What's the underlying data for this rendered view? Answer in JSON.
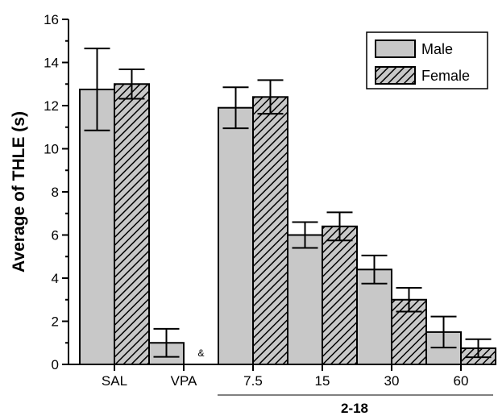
{
  "chart_data": {
    "type": "bar",
    "title": "",
    "xlabel": "",
    "ylabel": "Average of THLE (s)",
    "ylim": [
      0,
      16
    ],
    "yticks": [
      0,
      2,
      4,
      6,
      8,
      10,
      12,
      14,
      16
    ],
    "categories": [
      "SAL",
      "VPA",
      "7.5",
      "15",
      "30",
      "60"
    ],
    "group_label": "2-18",
    "group_span": [
      "7.5",
      "60"
    ],
    "series": [
      {
        "name": "Male",
        "pattern": "solid",
        "color": "#c8c8c8",
        "values": [
          12.75,
          1.0,
          11.9,
          6.0,
          4.4,
          1.5
        ],
        "errors": [
          1.9,
          0.65,
          0.95,
          0.6,
          0.65,
          0.72
        ]
      },
      {
        "name": "Female",
        "pattern": "hatched",
        "color": "#c8c8c8",
        "values": [
          13.0,
          0,
          12.4,
          6.4,
          3.0,
          0.75
        ],
        "errors": [
          0.68,
          0,
          0.78,
          0.65,
          0.55,
          0.42
        ]
      }
    ],
    "annotations": [
      {
        "category": "VPA",
        "series": "Female",
        "text": "&"
      }
    ],
    "legend": {
      "position": "top-right"
    },
    "grid": false
  }
}
